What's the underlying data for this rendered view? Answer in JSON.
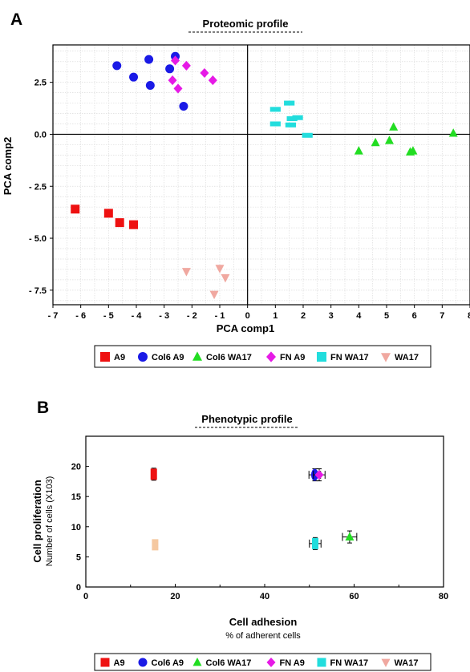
{
  "chart_data": [
    {
      "panel_label": "A",
      "type": "scatter",
      "title": "Proteomic profile",
      "xlabel": "PCA comp1",
      "ylabel": "PCA comp2",
      "xlim": [
        -7,
        8
      ],
      "ylim": [
        -8.2,
        4.3
      ],
      "x_ticks": [
        -7,
        -6,
        -5,
        -4,
        -3,
        -2,
        -1,
        0,
        1,
        2,
        3,
        4,
        5,
        6,
        7,
        8
      ],
      "x_tick_labels": [
        "- 7",
        "- 6",
        "- 5",
        "- 4",
        "- 3",
        "- 2",
        "- 1",
        "0",
        "1",
        "2",
        "3",
        "4",
        "5",
        "6",
        "7",
        "8"
      ],
      "y_ticks": [
        2.5,
        0.0,
        -2.5,
        -5.0,
        -7.5
      ],
      "y_tick_labels": [
        "2.5",
        "0.0",
        "- 2.5",
        "- 5.0",
        "- 7.5"
      ],
      "grid": true,
      "series": [
        {
          "name": "A9",
          "color": "#ee1111",
          "marker": "square",
          "points": [
            [
              -6.2,
              -3.6
            ],
            [
              -5.0,
              -3.8
            ],
            [
              -4.6,
              -4.25
            ],
            [
              -4.1,
              -4.35
            ]
          ]
        },
        {
          "name": "Col6 A9",
          "color": "#1a1ae6",
          "marker": "circle",
          "points": [
            [
              -4.7,
              3.3
            ],
            [
              -4.1,
              2.75
            ],
            [
              -3.55,
              3.6
            ],
            [
              -3.5,
              2.35
            ],
            [
              -2.8,
              3.15
            ],
            [
              -2.6,
              3.75
            ],
            [
              -2.3,
              1.35
            ]
          ]
        },
        {
          "name": "Col6 WA17",
          "color": "#22dd22",
          "marker": "triangle-up",
          "points": [
            [
              4.0,
              -0.8
            ],
            [
              4.6,
              -0.4
            ],
            [
              5.1,
              -0.3
            ],
            [
              5.25,
              0.35
            ],
            [
              5.85,
              -0.85
            ],
            [
              5.95,
              -0.8
            ],
            [
              7.4,
              0.05
            ]
          ]
        },
        {
          "name": "FN A9",
          "color": "#e61ae6",
          "marker": "diamond",
          "points": [
            [
              -2.7,
              2.6
            ],
            [
              -2.6,
              3.55
            ],
            [
              -2.5,
              2.2
            ],
            [
              -2.2,
              3.3
            ],
            [
              -1.55,
              2.95
            ],
            [
              -1.25,
              2.6
            ]
          ]
        },
        {
          "name": "FN WA17",
          "color": "#22dddd",
          "marker": "dash",
          "points": [
            [
              1.0,
              1.2
            ],
            [
              1.0,
              0.5
            ],
            [
              1.5,
              1.5
            ],
            [
              1.55,
              0.45
            ],
            [
              1.6,
              0.75
            ],
            [
              1.8,
              0.8
            ],
            [
              2.15,
              -0.05
            ]
          ]
        },
        {
          "name": "WA17",
          "color": "#f0a8a0",
          "marker": "triangle-down",
          "points": [
            [
              -2.2,
              -6.6
            ],
            [
              -1.0,
              -6.45
            ],
            [
              -0.8,
              -6.9
            ],
            [
              -1.2,
              -7.7
            ]
          ]
        }
      ]
    },
    {
      "panel_label": "B",
      "type": "scatter",
      "title": "Phenotypic profile",
      "xlabel": "Cell adhesion",
      "xlabel_sub": "% of adherent cells",
      "ylabel": "Cell proliferation",
      "ylabel_sub": "Number of cells (X103)",
      "xlim": [
        0,
        80
      ],
      "ylim": [
        0,
        25
      ],
      "x_ticks": [
        0,
        20,
        40,
        60,
        80
      ],
      "y_ticks": [
        0,
        5,
        10,
        15,
        20
      ],
      "grid": false,
      "series": [
        {
          "name": "A9",
          "color": "#ee1111",
          "marker": "square",
          "points": [
            [
              15.2,
              18.7
            ]
          ],
          "xerr": 0.4,
          "yerr": 1.0
        },
        {
          "name": "Col6 A9",
          "color": "#1a1ae6",
          "marker": "circle",
          "points": [
            [
              51.2,
              18.6
            ]
          ],
          "xerr": 1.3,
          "yerr": 1.0
        },
        {
          "name": "Col6 WA17",
          "color": "#22dd22",
          "marker": "triangle-up",
          "points": [
            [
              59.0,
              8.3
            ]
          ],
          "xerr": 1.6,
          "yerr": 1.0
        },
        {
          "name": "FN A9",
          "color": "#e61ae6",
          "marker": "diamond",
          "points": [
            [
              52.2,
              18.6
            ]
          ],
          "xerr": 1.3,
          "yerr": 1.0
        },
        {
          "name": "FN WA17",
          "color": "#22dddd",
          "marker": "square",
          "points": [
            [
              51.3,
              7.2
            ]
          ],
          "xerr": 1.3,
          "yerr": 1.0
        },
        {
          "name": "WA17",
          "color": "#f5c8a0",
          "marker": "square",
          "points": [
            [
              15.5,
              7.0
            ]
          ],
          "xerr": 0.4,
          "yerr": 0.8
        }
      ]
    }
  ],
  "legend": {
    "items": [
      {
        "label": "A9",
        "color": "#ee1111",
        "marker": "square"
      },
      {
        "label": "Col6 A9",
        "color": "#1a1ae6",
        "marker": "circle"
      },
      {
        "label": "Col6 WA17",
        "color": "#22dd22",
        "marker": "triangle-up"
      },
      {
        "label": "FN A9",
        "color": "#e61ae6",
        "marker": "diamond"
      },
      {
        "label": "FN WA17",
        "color": "#22dddd",
        "marker": "square"
      },
      {
        "label": "WA17",
        "color": "#f0a8a0",
        "marker": "triangle-down"
      }
    ]
  }
}
